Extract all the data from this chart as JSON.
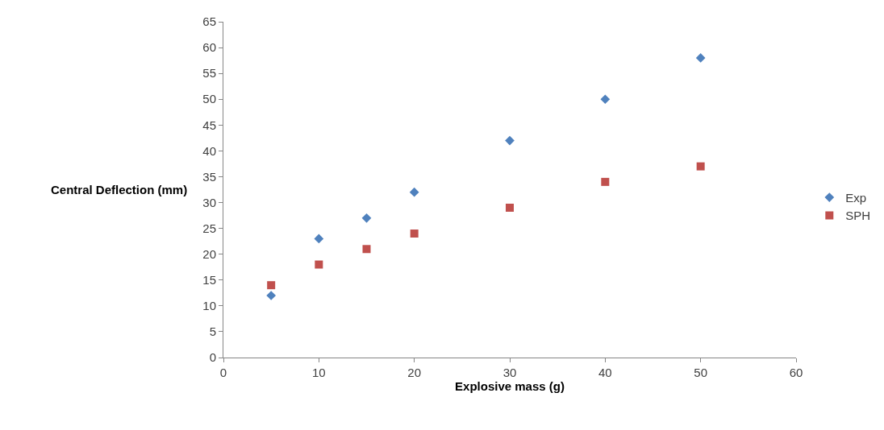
{
  "chart_data": {
    "type": "scatter",
    "xlabel": "Explosive mass (g)",
    "ylabel": "Central Deflection (mm)",
    "x": [
      5,
      10,
      15,
      20,
      30,
      40,
      50
    ],
    "series": [
      {
        "name": "Exp",
        "color": "#4f81bd",
        "marker": "diamond",
        "values": [
          12,
          23,
          27,
          32,
          42,
          50,
          58
        ]
      },
      {
        "name": "SPH",
        "color": "#c0504d",
        "marker": "square",
        "values": [
          14,
          18,
          21,
          24,
          29,
          34,
          37
        ]
      }
    ],
    "xlim": [
      0,
      60
    ],
    "xticks": [
      0,
      10,
      20,
      30,
      40,
      50,
      60
    ],
    "ylim": [
      0,
      65
    ],
    "yticks": [
      0,
      5,
      10,
      15,
      20,
      25,
      30,
      35,
      40,
      45,
      50,
      55,
      60,
      65
    ],
    "legend": "right"
  }
}
